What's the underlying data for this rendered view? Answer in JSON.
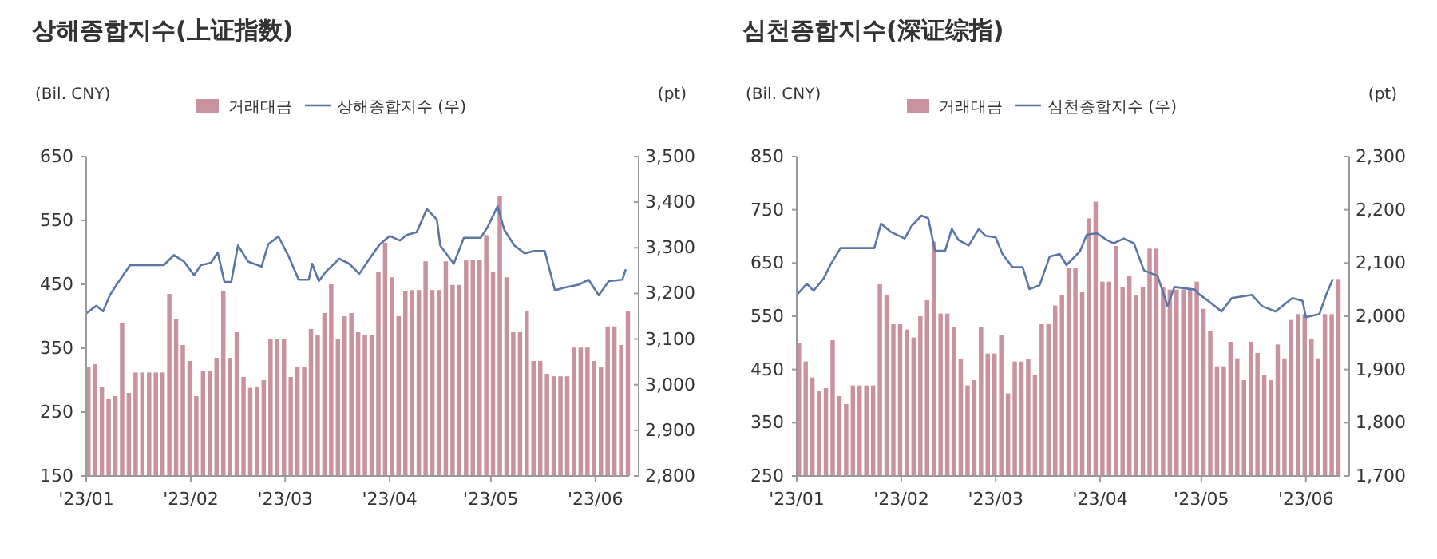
{
  "chart_data": [
    {
      "type": "bar",
      "title": "상해종합지수(上证指数)",
      "ylabel": "(Bil. CNY)",
      "y2label": "(pt)",
      "legend": "top",
      "grid": false,
      "x": [
        "2023-01-01",
        "2023-01-03",
        "2023-01-05",
        "2023-01-07",
        "2023-01-09",
        "2023-01-11",
        "2023-01-13",
        "2023-01-15",
        "2023-01-17",
        "2023-01-19",
        "2023-01-21",
        "2023-01-23",
        "2023-01-25",
        "2023-01-27",
        "2023-01-29",
        "2023-01-31",
        "2023-02-02",
        "2023-02-04",
        "2023-02-06",
        "2023-02-08",
        "2023-02-10",
        "2023-02-12",
        "2023-02-14",
        "2023-02-16",
        "2023-02-18",
        "2023-02-20",
        "2023-02-22",
        "2023-02-24",
        "2023-02-26",
        "2023-02-28",
        "2023-03-02",
        "2023-03-04",
        "2023-03-06",
        "2023-03-08",
        "2023-03-10",
        "2023-03-12",
        "2023-03-14",
        "2023-03-16",
        "2023-03-18",
        "2023-03-20",
        "2023-03-22",
        "2023-03-24",
        "2023-03-26",
        "2023-03-28",
        "2023-03-30",
        "2023-04-01",
        "2023-04-03",
        "2023-04-05",
        "2023-04-07",
        "2023-04-09",
        "2023-04-11",
        "2023-04-13",
        "2023-04-15",
        "2023-04-17",
        "2023-04-19",
        "2023-04-21",
        "2023-04-23",
        "2023-04-25",
        "2023-04-27",
        "2023-04-29",
        "2023-05-01",
        "2023-05-03",
        "2023-05-05",
        "2023-05-07",
        "2023-05-09",
        "2023-05-11",
        "2023-05-13",
        "2023-05-15",
        "2023-05-17",
        "2023-05-19",
        "2023-05-21",
        "2023-05-23",
        "2023-05-25",
        "2023-05-27",
        "2023-05-29",
        "2023-05-31",
        "2023-06-02",
        "2023-06-04",
        "2023-06-06",
        "2023-06-08",
        "2023-06-10"
      ],
      "xlim": [
        "2023-01-01",
        "2023-06-11"
      ],
      "xticks": [
        {
          "value": "2023-01-01",
          "label": "'23/01"
        },
        {
          "value": "2023-02-01",
          "label": "'23/02"
        },
        {
          "value": "2023-03-01",
          "label": "'23/03"
        },
        {
          "value": "2023-04-01",
          "label": "'23/04"
        },
        {
          "value": "2023-05-01",
          "label": "'23/05"
        },
        {
          "value": "2023-06-01",
          "label": "'23/06"
        }
      ],
      "ylim": [
        150,
        650
      ],
      "yticks": [
        150,
        250,
        350,
        450,
        550,
        650
      ],
      "y2lim": [
        2800,
        3500
      ],
      "y2ticks": [
        {
          "value": 2800,
          "label": "2,800"
        },
        {
          "value": 2900,
          "label": "2,900"
        },
        {
          "value": 3000,
          "label": "3,000"
        },
        {
          "value": 3100,
          "label": "3,100"
        },
        {
          "value": 3200,
          "label": "3,200"
        },
        {
          "value": 3300,
          "label": "3,300"
        },
        {
          "value": 3400,
          "label": "3,400"
        },
        {
          "value": 3500,
          "label": "3,500"
        }
      ],
      "series": [
        {
          "name": "거래대금",
          "color": "#c8939f",
          "values": [
            320,
            325,
            290,
            270,
            275,
            390,
            280,
            312,
            312,
            312,
            312,
            312,
            435,
            395,
            355,
            330,
            275,
            315,
            315,
            335,
            440,
            335,
            375,
            305,
            288,
            290,
            300,
            365,
            365,
            365,
            305,
            320,
            320,
            380,
            370,
            405,
            450,
            365,
            400,
            405,
            375,
            370,
            370,
            470,
            515,
            461,
            400,
            440,
            441,
            441,
            486,
            441,
            441,
            486,
            449,
            449,
            488,
            488,
            488,
            527,
            470,
            588,
            461,
            375,
            375,
            408,
            330,
            330,
            310,
            306,
            306,
            306,
            351,
            351,
            351,
            330,
            320,
            384,
            384,
            355,
            408
          ]
        },
        {
          "name": "상해종합지수 (우)",
          "type": "line",
          "axis": "y2",
          "color": "#5b76a6",
          "x": [
            "2023-01-01",
            "2023-01-04",
            "2023-01-06",
            "2023-01-08",
            "2023-01-10",
            "2023-01-14",
            "2023-01-24",
            "2023-01-27",
            "2023-01-30",
            "2023-02-02",
            "2023-02-04",
            "2023-02-07",
            "2023-02-09",
            "2023-02-11",
            "2023-02-13",
            "2023-02-15",
            "2023-02-18",
            "2023-02-22",
            "2023-02-24",
            "2023-02-27",
            "2023-03-02",
            "2023-03-05",
            "2023-03-08",
            "2023-03-09",
            "2023-03-11",
            "2023-03-13",
            "2023-03-17",
            "2023-03-20",
            "2023-03-23",
            "2023-03-26",
            "2023-03-29",
            "2023-04-01",
            "2023-04-04",
            "2023-04-06",
            "2023-04-09",
            "2023-04-12",
            "2023-04-15",
            "2023-04-16",
            "2023-04-20",
            "2023-04-23",
            "2023-04-28",
            "2023-04-30",
            "2023-05-03",
            "2023-05-05",
            "2023-05-08",
            "2023-05-11",
            "2023-05-14",
            "2023-05-17",
            "2023-05-20",
            "2023-05-23",
            "2023-05-27",
            "2023-05-30",
            "2023-06-02",
            "2023-06-05",
            "2023-06-09",
            "2023-06-10"
          ],
          "values": [
            3156,
            3173,
            3161,
            3196,
            3219,
            3262,
            3262,
            3284,
            3270,
            3240,
            3262,
            3267,
            3290,
            3225,
            3225,
            3305,
            3270,
            3259,
            3308,
            3325,
            3282,
            3230,
            3230,
            3265,
            3227,
            3247,
            3276,
            3265,
            3243,
            3276,
            3307,
            3326,
            3316,
            3328,
            3334,
            3385,
            3362,
            3305,
            3265,
            3322,
            3322,
            3345,
            3391,
            3339,
            3305,
            3288,
            3293,
            3293,
            3207,
            3213,
            3219,
            3230,
            3196,
            3227,
            3230,
            3253
          ]
        }
      ]
    },
    {
      "type": "bar",
      "title": "심천종합지수(深证综指)",
      "ylabel": "(Bil. CNY)",
      "y2label": "(pt)",
      "legend": "top",
      "grid": false,
      "x": [
        "2023-01-01",
        "2023-01-03",
        "2023-01-05",
        "2023-01-07",
        "2023-01-09",
        "2023-01-11",
        "2023-01-13",
        "2023-01-15",
        "2023-01-17",
        "2023-01-19",
        "2023-01-21",
        "2023-01-23",
        "2023-01-25",
        "2023-01-27",
        "2023-01-29",
        "2023-01-31",
        "2023-02-02",
        "2023-02-04",
        "2023-02-06",
        "2023-02-08",
        "2023-02-10",
        "2023-02-12",
        "2023-02-14",
        "2023-02-16",
        "2023-02-18",
        "2023-02-20",
        "2023-02-22",
        "2023-02-24",
        "2023-02-26",
        "2023-02-28",
        "2023-03-02",
        "2023-03-04",
        "2023-03-06",
        "2023-03-08",
        "2023-03-10",
        "2023-03-12",
        "2023-03-14",
        "2023-03-16",
        "2023-03-18",
        "2023-03-20",
        "2023-03-22",
        "2023-03-24",
        "2023-03-26",
        "2023-03-28",
        "2023-03-30",
        "2023-04-01",
        "2023-04-03",
        "2023-04-05",
        "2023-04-07",
        "2023-04-09",
        "2023-04-11",
        "2023-04-13",
        "2023-04-15",
        "2023-04-17",
        "2023-04-19",
        "2023-04-21",
        "2023-04-23",
        "2023-04-25",
        "2023-04-27",
        "2023-04-29",
        "2023-05-01",
        "2023-05-03",
        "2023-05-05",
        "2023-05-07",
        "2023-05-09",
        "2023-05-11",
        "2023-05-13",
        "2023-05-15",
        "2023-05-17",
        "2023-05-19",
        "2023-05-21",
        "2023-05-23",
        "2023-05-25",
        "2023-05-27",
        "2023-05-29",
        "2023-05-31",
        "2023-06-02",
        "2023-06-04",
        "2023-06-06",
        "2023-06-08",
        "2023-06-10"
      ],
      "xlim": [
        "2023-01-01",
        "2023-06-11"
      ],
      "xticks": [
        {
          "value": "2023-01-01",
          "label": "'23/01"
        },
        {
          "value": "2023-02-01",
          "label": "'23/02"
        },
        {
          "value": "2023-03-01",
          "label": "'23/03"
        },
        {
          "value": "2023-04-01",
          "label": "'23/04"
        },
        {
          "value": "2023-05-01",
          "label": "'23/05"
        },
        {
          "value": "2023-06-01",
          "label": "'23/06"
        }
      ],
      "ylim": [
        250,
        850
      ],
      "yticks": [
        250,
        350,
        450,
        550,
        650,
        750,
        850
      ],
      "y2lim": [
        1700,
        2300
      ],
      "y2ticks": [
        {
          "value": 1700,
          "label": "1,700"
        },
        {
          "value": 1800,
          "label": "1,800"
        },
        {
          "value": 1900,
          "label": "1,900"
        },
        {
          "value": 2000,
          "label": "2,000"
        },
        {
          "value": 2100,
          "label": "2,100"
        },
        {
          "value": 2200,
          "label": "2,200"
        },
        {
          "value": 2300,
          "label": "2,300"
        }
      ],
      "series": [
        {
          "name": "거래대금",
          "color": "#c8939f",
          "values": [
            500,
            465,
            435,
            410,
            415,
            505,
            400,
            385,
            420,
            420,
            420,
            420,
            610,
            590,
            535,
            535,
            525,
            510,
            550,
            580,
            690,
            555,
            555,
            530,
            470,
            420,
            430,
            530,
            480,
            480,
            515,
            405,
            465,
            465,
            470,
            440,
            535,
            535,
            570,
            590,
            640,
            640,
            595,
            734,
            765,
            615,
            615,
            682,
            605,
            626,
            590,
            605,
            677,
            677,
            605,
            600,
            600,
            600,
            600,
            615,
            564,
            523,
            456,
            456,
            502,
            471,
            430,
            502,
            481,
            440,
            430,
            497,
            471,
            543,
            554,
            554,
            507,
            471,
            554,
            554,
            620
          ]
        },
        {
          "name": "심천종합지수 (우)",
          "type": "line",
          "axis": "y2",
          "color": "#5b76a6",
          "x": [
            "2023-01-01",
            "2023-01-04",
            "2023-01-06",
            "2023-01-09",
            "2023-01-11",
            "2023-01-14",
            "2023-01-24",
            "2023-01-26",
            "2023-01-29",
            "2023-02-02",
            "2023-02-04",
            "2023-02-07",
            "2023-02-09",
            "2023-02-11",
            "2023-02-14",
            "2023-02-16",
            "2023-02-18",
            "2023-02-21",
            "2023-02-24",
            "2023-02-26",
            "2023-03-01",
            "2023-03-03",
            "2023-03-06",
            "2023-03-09",
            "2023-03-11",
            "2023-03-14",
            "2023-03-17",
            "2023-03-20",
            "2023-03-22",
            "2023-03-26",
            "2023-03-28",
            "2023-03-31",
            "2023-04-03",
            "2023-04-05",
            "2023-04-08",
            "2023-04-11",
            "2023-04-14",
            "2023-04-18",
            "2023-04-21",
            "2023-04-23",
            "2023-04-29",
            "2023-04-30",
            "2023-05-03",
            "2023-05-07",
            "2023-05-10",
            "2023-05-16",
            "2023-05-19",
            "2023-05-23",
            "2023-05-28",
            "2023-05-31",
            "2023-06-01",
            "2023-06-05",
            "2023-06-07",
            "2023-06-09"
          ],
          "values": [
            2040,
            2061,
            2048,
            2071,
            2097,
            2128,
            2128,
            2174,
            2158,
            2146,
            2169,
            2189,
            2184,
            2123,
            2123,
            2164,
            2143,
            2133,
            2164,
            2151,
            2148,
            2117,
            2092,
            2092,
            2051,
            2058,
            2112,
            2117,
            2096,
            2122,
            2153,
            2156,
            2143,
            2137,
            2146,
            2137,
            2086,
            2076,
            2019,
            2055,
            2050,
            2043,
            2029,
            2009,
            2034,
            2040,
            2019,
            2009,
            2034,
            2029,
            1998,
            2004,
            2040,
            2070
          ]
        }
      ]
    }
  ]
}
